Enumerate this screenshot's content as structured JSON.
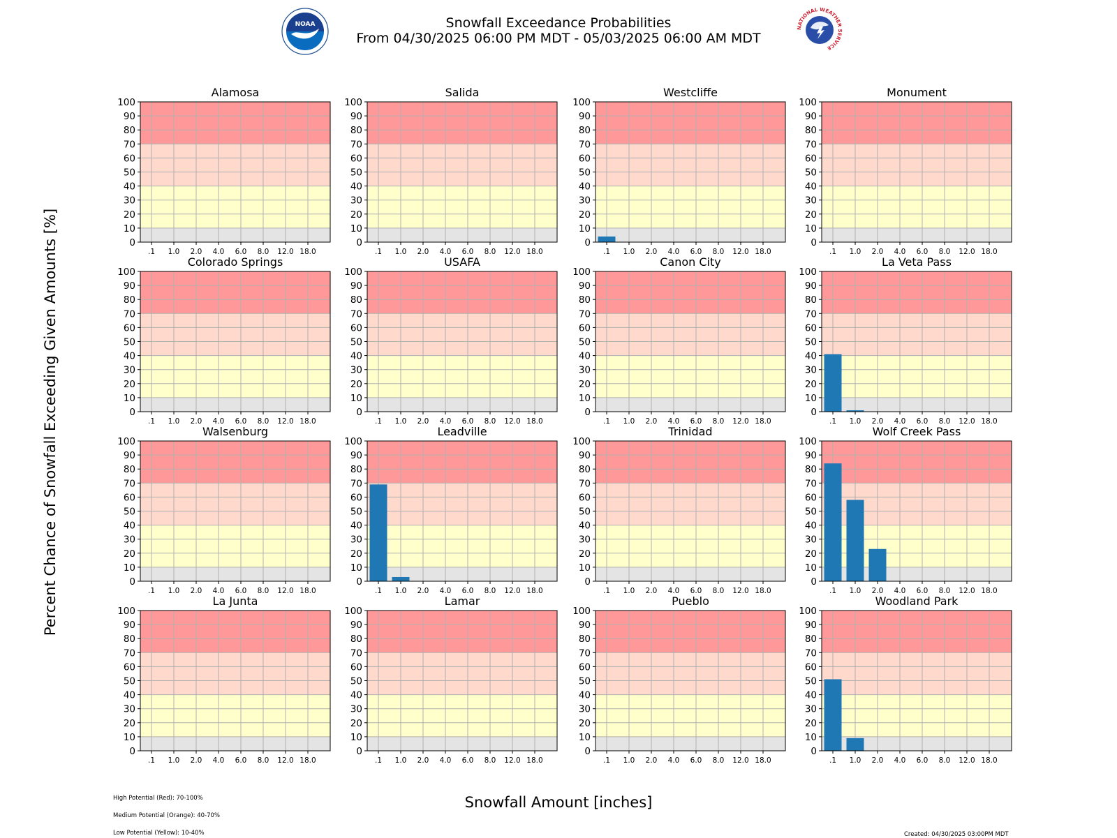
{
  "header": {
    "title": "Snowfall Exceedance Probabilities",
    "subtitle": "From 04/30/2025 06:00 PM MDT - 05/03/2025 06:00 AM MDT",
    "noaa_logo_text": "NOAA",
    "nws_logo_text": "NATIONAL WEATHER SERVICE"
  },
  "axes": {
    "xlabel": "Snowfall Amount [inches]",
    "ylabel": "Percent Chance of Snowfall Exceeding Given Amounts [%]"
  },
  "notes": {
    "high": "High Potential (Red): 70-100%",
    "medium": "Medium Potential (Orange): 40-70%",
    "low": "Low Potential (Yellow): 10-40%",
    "created": "Created: 04/30/2025 03:00PM MDT"
  },
  "colors": {
    "bar": "#1f77b4",
    "high": "#ff9999",
    "medium": "#ffd9cc",
    "low": "#ffffcc",
    "none": "#e4e4e4",
    "grid": "#b0b0b0"
  },
  "chart_data": {
    "type": "bar",
    "categories": [
      ".1",
      "1.0",
      "2.0",
      "4.0",
      "6.0",
      "8.0",
      "12.0",
      "18.0"
    ],
    "ylim": [
      0,
      100
    ],
    "yticks": [
      0,
      10,
      20,
      30,
      40,
      50,
      60,
      70,
      80,
      90,
      100
    ],
    "grid": true,
    "bands": [
      {
        "range": [
          0,
          10
        ]
      },
      {
        "range": [
          10,
          40
        ]
      },
      {
        "range": [
          40,
          70
        ]
      },
      {
        "range": [
          70,
          100
        ]
      }
    ],
    "panels": [
      {
        "title": "Alamosa",
        "values": [
          0,
          0,
          0,
          0,
          0,
          0,
          0,
          0
        ]
      },
      {
        "title": "Salida",
        "values": [
          0,
          0,
          0,
          0,
          0,
          0,
          0,
          0
        ]
      },
      {
        "title": "Westcliffe",
        "values": [
          4,
          0,
          0,
          0,
          0,
          0,
          0,
          0
        ]
      },
      {
        "title": "Monument",
        "values": [
          0,
          0,
          0,
          0,
          0,
          0,
          0,
          0
        ]
      },
      {
        "title": "Colorado Springs",
        "values": [
          0,
          0,
          0,
          0,
          0,
          0,
          0,
          0
        ]
      },
      {
        "title": "USAFA",
        "values": [
          0,
          0,
          0,
          0,
          0,
          0,
          0,
          0
        ]
      },
      {
        "title": "Canon City",
        "values": [
          0,
          0,
          0,
          0,
          0,
          0,
          0,
          0
        ]
      },
      {
        "title": "La Veta Pass",
        "values": [
          41,
          1,
          0,
          0,
          0,
          0,
          0,
          0
        ]
      },
      {
        "title": "Walsenburg",
        "values": [
          0,
          0,
          0,
          0,
          0,
          0,
          0,
          0
        ]
      },
      {
        "title": "Leadville",
        "values": [
          69,
          3,
          0,
          0,
          0,
          0,
          0,
          0
        ]
      },
      {
        "title": "Trinidad",
        "values": [
          0,
          0,
          0,
          0,
          0,
          0,
          0,
          0
        ]
      },
      {
        "title": "Wolf Creek Pass",
        "values": [
          84,
          58,
          23,
          0,
          0,
          0,
          0,
          0
        ]
      },
      {
        "title": "La Junta",
        "values": [
          0,
          0,
          0,
          0,
          0,
          0,
          0,
          0
        ]
      },
      {
        "title": "Lamar",
        "values": [
          0,
          0,
          0,
          0,
          0,
          0,
          0,
          0
        ]
      },
      {
        "title": "Pueblo",
        "values": [
          0,
          0,
          0,
          0,
          0,
          0,
          0,
          0
        ]
      },
      {
        "title": "Woodland Park",
        "values": [
          51,
          9,
          0,
          0,
          0,
          0,
          0,
          0
        ]
      }
    ]
  }
}
